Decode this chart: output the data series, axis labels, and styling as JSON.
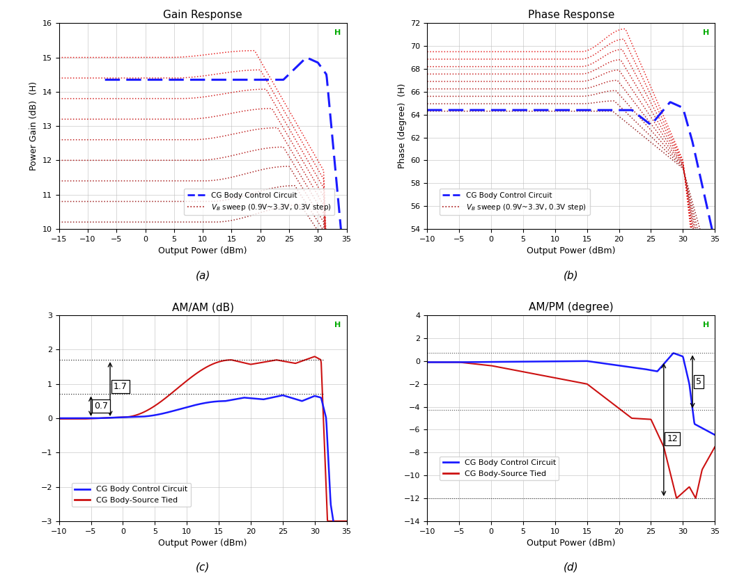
{
  "fig_width": 10.58,
  "fig_height": 8.32,
  "bg_color": "#ffffff",
  "subplot_titles": [
    "Gain Response",
    "Phase Response",
    "AM/AM (dB)",
    "AM/PM (degree)"
  ],
  "subplot_labels": [
    "(a)",
    "(b)",
    "(c)",
    "(d)"
  ],
  "gain_xlim": [
    -15,
    35
  ],
  "gain_ylim": [
    10,
    16
  ],
  "gain_xticks": [
    -15,
    -10,
    -5,
    0,
    5,
    10,
    15,
    20,
    25,
    30,
    35
  ],
  "gain_yticks": [
    10,
    11,
    12,
    13,
    14,
    15,
    16
  ],
  "phase_xlim": [
    -10,
    35
  ],
  "phase_ylim": [
    54,
    72
  ],
  "phase_xticks": [
    -10,
    -5,
    0,
    5,
    10,
    15,
    20,
    25,
    30,
    35
  ],
  "phase_yticks": [
    54,
    56,
    58,
    60,
    62,
    64,
    66,
    68,
    70,
    72
  ],
  "amam_xlim": [
    -10,
    35
  ],
  "amam_ylim": [
    -3,
    3
  ],
  "amam_xticks": [
    -10,
    -5,
    0,
    5,
    10,
    15,
    20,
    25,
    30,
    35
  ],
  "amam_yticks": [
    -3,
    -2,
    -1,
    0,
    1,
    2,
    3
  ],
  "ampm_xlim": [
    -10,
    35
  ],
  "ampm_ylim": [
    -14,
    4
  ],
  "ampm_xticks": [
    -10,
    -5,
    0,
    5,
    10,
    15,
    20,
    25,
    30,
    35
  ],
  "ampm_yticks": [
    -14,
    -12,
    -10,
    -8,
    -6,
    -4,
    -2,
    0,
    2,
    4
  ],
  "xlabel": "Output Power (dBm)",
  "gain_ylabel": "Power Gain (dB)  (H)",
  "phase_ylabel": "Phase (degree)  (H)",
  "blue_color": "#1a1aff",
  "sweep_color": "#aa1111",
  "grid_color": "#bbbbbb",
  "green_h_color": "#00aa00",
  "plot_bg": "#ffffff",
  "n_sweep": 9
}
